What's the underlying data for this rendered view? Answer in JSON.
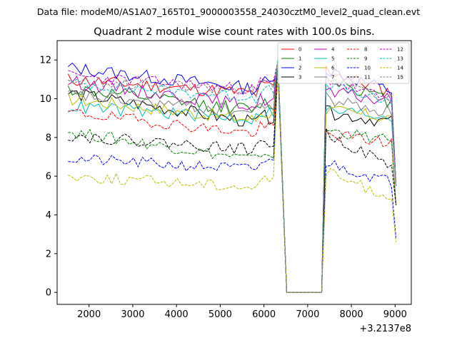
{
  "suptitle": "Data file: modeM0/AS1A07_165T01_9000003558_24030cztM0_level2_quad_clean.evt",
  "chart_data": {
    "type": "line",
    "title": "Quadrant 2 module wise count rates with 100.0s bins.",
    "xlabel": "",
    "ylabel": "",
    "x_offset_label": "+3.2137e8",
    "xlim": [
      1270,
      9370
    ],
    "ylim": [
      -0.62,
      13.0
    ],
    "xticks": [
      2000,
      3000,
      4000,
      5000,
      6000,
      7000,
      8000,
      9000
    ],
    "xtick_labels": [
      "2000",
      "3000",
      "4000",
      "5000",
      "6000",
      "7000",
      "8000",
      "9000"
    ],
    "yticks": [
      0,
      2,
      4,
      6,
      8,
      10,
      12
    ],
    "ytick_labels": [
      "0",
      "2",
      "4",
      "6",
      "8",
      "10",
      "12"
    ],
    "legend_position": "top-right",
    "x": [
      1520,
      1620,
      1720,
      1820,
      1920,
      2020,
      2120,
      2220,
      2320,
      2420,
      2520,
      2620,
      2720,
      2820,
      2920,
      3020,
      3120,
      3220,
      3320,
      3420,
      3520,
      3620,
      3720,
      3820,
      3920,
      4020,
      4120,
      4220,
      4320,
      4420,
      4520,
      4620,
      4720,
      4820,
      4920,
      5020,
      5120,
      5220,
      5320,
      5420,
      5520,
      5620,
      5720,
      5820,
      5920,
      6020,
      6120,
      6220,
      6320,
      6520,
      7320,
      7420,
      7520,
      7620,
      7720,
      7820,
      7920,
      8020,
      8120,
      8220,
      8320,
      8420,
      8520,
      8620,
      8720,
      8820,
      8920,
      9020
    ],
    "series": [
      {
        "name": "0",
        "color": "#ff0000",
        "dash": "solid",
        "base": 11.0,
        "end": 10.2,
        "recover": 11.5,
        "post": 10.3,
        "last": 5.5,
        "noise": 0.35,
        "seed": 11
      },
      {
        "name": "1",
        "color": "#008000",
        "dash": "solid",
        "base": 10.5,
        "end": 9.3,
        "recover": 11.2,
        "post": 9.8,
        "last": 5.5,
        "noise": 0.35,
        "seed": 12
      },
      {
        "name": "2",
        "color": "#0000ff",
        "dash": "solid",
        "base": 11.6,
        "end": 10.4,
        "recover": 11.5,
        "post": 10.4,
        "last": 5.5,
        "noise": 0.35,
        "seed": 13
      },
      {
        "name": "3",
        "color": "#000000",
        "dash": "solid",
        "base": 10.3,
        "end": 8.6,
        "recover": 9.3,
        "post": 8.8,
        "last": 5.5,
        "noise": 0.35,
        "seed": 14
      },
      {
        "name": "4",
        "color": "#bf00bf",
        "dash": "solid",
        "base": 10.9,
        "end": 9.5,
        "recover": 10.3,
        "post": 9.9,
        "last": 5.5,
        "noise": 0.35,
        "seed": 15
      },
      {
        "name": "5",
        "color": "#00bfbf",
        "dash": "solid",
        "base": 9.6,
        "end": 8.9,
        "recover": 9.4,
        "post": 9.1,
        "last": 5.5,
        "noise": 0.35,
        "seed": 16
      },
      {
        "name": "6",
        "color": "#bfbf00",
        "dash": "solid",
        "base": 10.0,
        "end": 8.8,
        "recover": 9.4,
        "post": 9.0,
        "last": 5.5,
        "noise": 0.35,
        "seed": 17
      },
      {
        "name": "7",
        "color": "#808080",
        "dash": "solid",
        "base": 10.2,
        "end": 9.2,
        "recover": 10.0,
        "post": 9.3,
        "last": 5.5,
        "noise": 0.35,
        "seed": 18
      },
      {
        "name": "8",
        "color": "#ff0000",
        "dash": "dashed",
        "base": 9.3,
        "end": 8.1,
        "recover": 8.2,
        "post": 7.7,
        "last": 4.5,
        "noise": 0.3,
        "seed": 19
      },
      {
        "name": "9",
        "color": "#008000",
        "dash": "dashed",
        "base": 8.3,
        "end": 6.7,
        "recover": 8.4,
        "post": 7.8,
        "last": 4.5,
        "noise": 0.3,
        "seed": 20
      },
      {
        "name": "10",
        "color": "#0000ff",
        "dash": "dashed",
        "base": 6.9,
        "end": 6.3,
        "recover": 6.7,
        "post": 5.7,
        "last": 2.8,
        "noise": 0.3,
        "seed": 21
      },
      {
        "name": "11",
        "color": "#000000",
        "dash": "dashed",
        "base": 8.1,
        "end": 7.3,
        "recover": 8.2,
        "post": 6.5,
        "last": 4.5,
        "noise": 0.3,
        "seed": 22
      },
      {
        "name": "12",
        "color": "#bf00bf",
        "dash": "dashed",
        "base": 11.2,
        "end": 10.4,
        "recover": 11.0,
        "post": 9.9,
        "last": 5.5,
        "noise": 0.3,
        "seed": 23
      },
      {
        "name": "13",
        "color": "#00bfbf",
        "dash": "dashed",
        "base": 10.8,
        "end": 10.0,
        "recover": 10.8,
        "post": 9.7,
        "last": 5.5,
        "noise": 0.3,
        "seed": 24
      },
      {
        "name": "14",
        "color": "#bfbf00",
        "dash": "dashed",
        "base": 6.0,
        "end": 5.4,
        "recover": 6.2,
        "post": 4.9,
        "last": 2.6,
        "noise": 0.3,
        "seed": 25
      },
      {
        "name": "15",
        "color": "#808080",
        "dash": "dashed",
        "base": 11.0,
        "end": 10.3,
        "recover": 11.1,
        "post": 10.0,
        "last": 5.5,
        "noise": 0.3,
        "seed": 26
      }
    ]
  }
}
